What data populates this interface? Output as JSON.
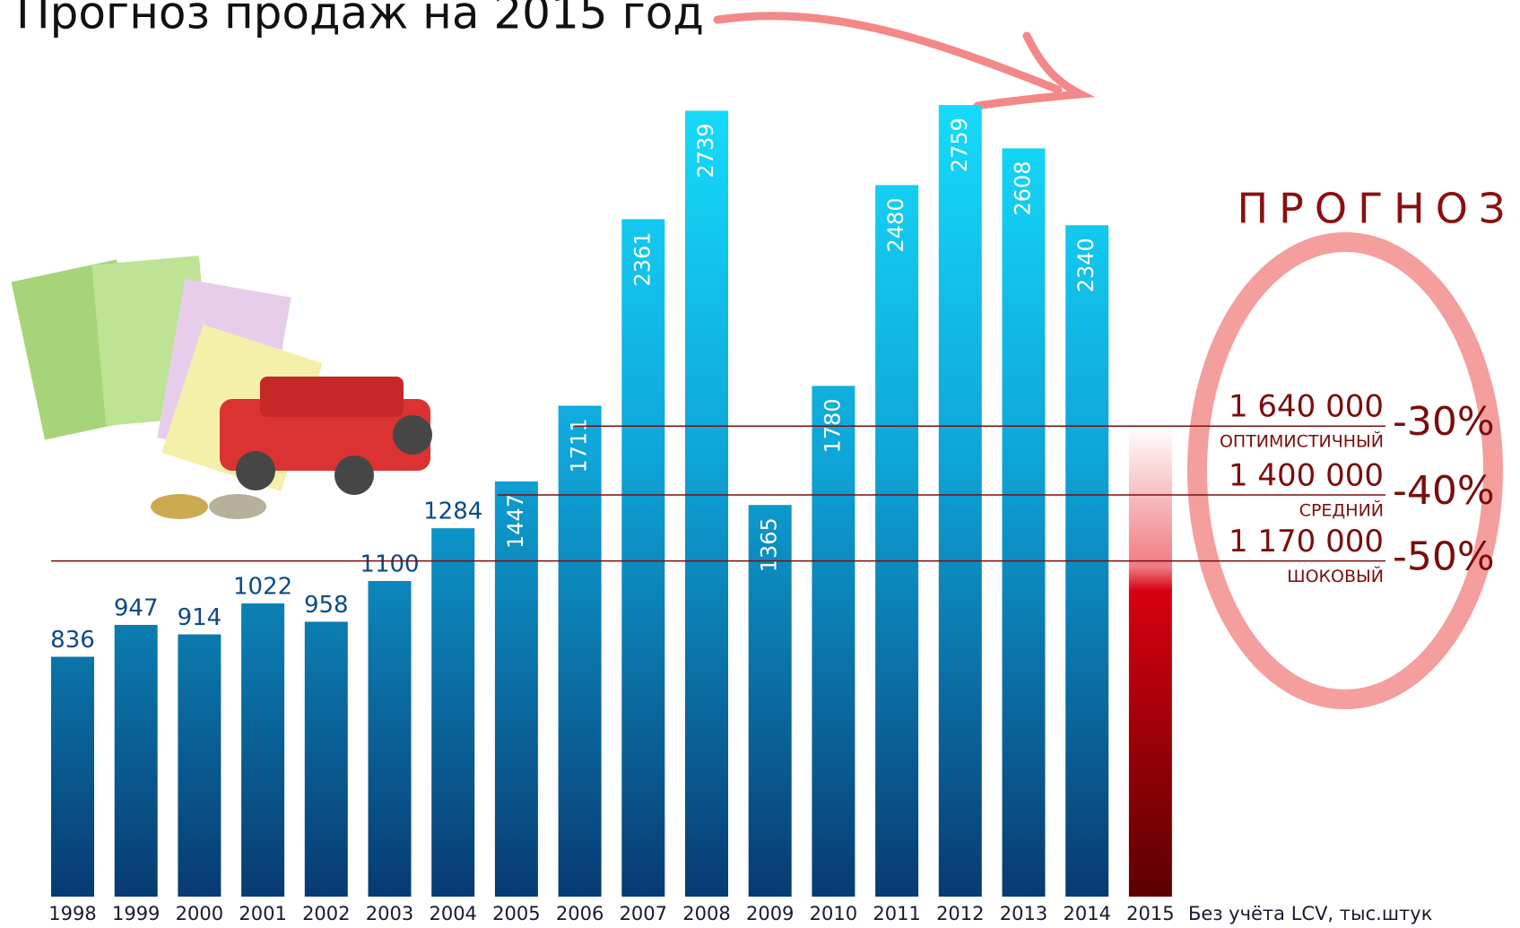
{
  "chart_data": {
    "type": "bar",
    "title": "Прогноз продаж на 2015 год",
    "note": "Без учёта LCV, тыс.штук",
    "forecast_title": "ПРОГНОЗ",
    "categories": [
      "1998",
      "1999",
      "2000",
      "2001",
      "2002",
      "2003",
      "2004",
      "2005",
      "2006",
      "2007",
      "2008",
      "2009",
      "2010",
      "2011",
      "2012",
      "2013",
      "2014",
      "2015"
    ],
    "values": [
      836,
      947,
      914,
      1022,
      958,
      1100,
      1284,
      1447,
      1711,
      2361,
      2739,
      1365,
      1780,
      2480,
      2759,
      2608,
      2340,
      null
    ],
    "ylim": [
      0,
      3125
    ],
    "forecast": [
      {
        "value": 1640,
        "label": "1 640 000",
        "name": "оптимистичный",
        "change": "-30%"
      },
      {
        "value": 1400,
        "label": "1 400 000",
        "name": "средний",
        "change": "-40%"
      },
      {
        "value": 1170,
        "label": "1 170 000",
        "name": "шоковый",
        "change": "-50%"
      }
    ]
  }
}
